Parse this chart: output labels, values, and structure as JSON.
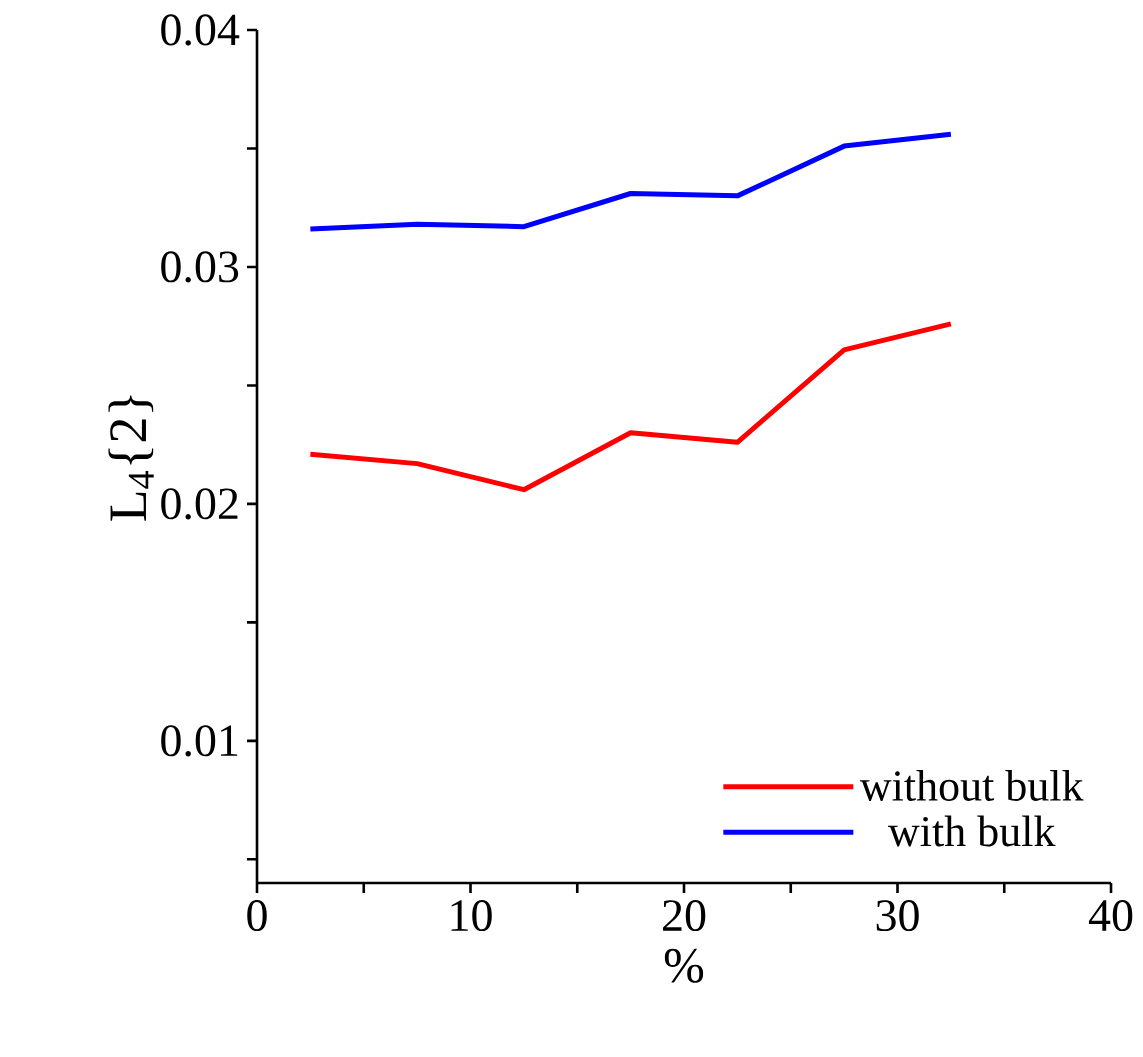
{
  "chart_data": {
    "type": "line",
    "xlabel": "%",
    "ylabel": "L$_{4}${2}",
    "x": [
      2.5,
      7.5,
      12.5,
      17.5,
      22.5,
      27.5,
      32.5
    ],
    "series": [
      {
        "name": "without bulk",
        "color": "#ff0000",
        "values": [
          0.0221,
          0.0217,
          0.0206,
          0.023,
          0.0226,
          0.0265,
          0.0276
        ]
      },
      {
        "name": "with bulk",
        "color": "#0000ff",
        "values": [
          0.0316,
          0.0318,
          0.0317,
          0.0331,
          0.033,
          0.0351,
          0.0356
        ]
      }
    ],
    "xlim": [
      0,
      40
    ],
    "xticks": [
      0,
      {
        "value": 5,
        "label": null
      },
      10,
      {
        "value": 15,
        "label": null
      },
      20,
      {
        "value": 25,
        "label": null
      },
      30,
      {
        "value": 35,
        "label": null
      },
      40
    ],
    "ylim": [
      0.004,
      0.04
    ],
    "yticks": [
      {
        "value": 0.005,
        "label": null
      },
      0.01,
      {
        "value": 0.015,
        "label": null
      },
      0.02,
      {
        "value": 0.025,
        "label": null
      },
      0.03,
      {
        "value": 0.035,
        "label": null
      },
      0.04
    ],
    "grid": false,
    "legend": "bottom right",
    "marker": "none",
    "line_style": "solid"
  }
}
